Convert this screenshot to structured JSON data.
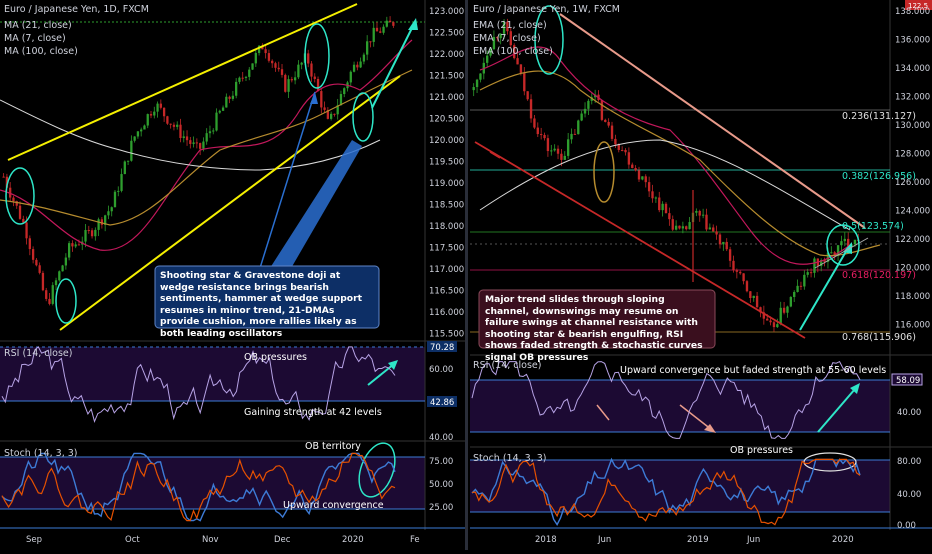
{
  "colors": {
    "background": "#000000",
    "up_candle": "#2e9e2e",
    "down_candle": "#c62828",
    "ma21": "#b58b2e",
    "ma7": "#c2185b",
    "ma100": "#d9d9d9",
    "wedge": "#f5f000",
    "cyan": "#2ee6c8",
    "blue_arrow": "#2a6fd1",
    "channel_upper": "#e89a8a",
    "channel_lower": "#c62828",
    "rsi": "#b7a3e6",
    "stoch_k": "#3d7bd6",
    "stoch_d": "#e65100",
    "osc_band": "#1c0a33",
    "axis_text": "#cfd2dc",
    "annotation_bg": "#0d2f66",
    "annotation_bg2": "#3a0f1e"
  },
  "left": {
    "title": "Euro / Japanese Yen, 1D, FXCM",
    "legend": [
      "MA (21, close)",
      "MA (7, close)",
      "MA (100, close)"
    ],
    "x_ticks": [
      "Sep",
      "Oct",
      "Nov",
      "Dec",
      "2020",
      "Fe"
    ],
    "price_ticks": [
      "123.000",
      "122.500",
      "122.000",
      "121.500",
      "121.000",
      "120.500",
      "120.000",
      "119.500",
      "119.000",
      "118.500",
      "118.000",
      "117.500",
      "117.000",
      "116.500",
      "116.000",
      "115.500"
    ],
    "note": "Shooting star & Gravestone doji at wedge resistance brings bearish sentiments, hammer at wedge support resumes in minor trend, 21-DMAs provide cushion, more rallies likely as both leading oscillators",
    "rsi": {
      "label": "RSI (14, close)",
      "ticks": [
        "60.00",
        "40.00"
      ],
      "level_hi": "70.28",
      "level_lo": "42.86",
      "notes": [
        "OB pressures",
        "Gaining strength at 42 levels"
      ]
    },
    "stoch": {
      "label": "Stoch (14, 3, 3)",
      "ticks": [
        "75.00",
        "50.00",
        "25.00"
      ],
      "notes": [
        "OB territory",
        "Upward convergence"
      ]
    }
  },
  "right": {
    "title": "Euro / Japanese Yen, 1W, FXCM",
    "legend": [
      "EMA (21, close)",
      "EMA (7, close)",
      "EMA (100, close)"
    ],
    "x_ticks": [
      "2018",
      "Jun",
      "2019",
      "Jun",
      "2020"
    ],
    "price_ticks": [
      "138.000",
      "136.000",
      "134.000",
      "132.000",
      "130.000",
      "128.000",
      "126.000",
      "124.000",
      "122.000",
      "120.000",
      "118.000",
      "116.000"
    ],
    "price_badge": "122.5",
    "fib_labels": [
      "0.236(131.127)",
      "0.382(126.956)",
      "0.5(123.574)",
      "0.618(120.197)",
      "0.768(115.906)"
    ],
    "note": "Major trend slides through sloping channel, downswings may resume on failure swings at channel resistance with shooting star & bearish engulfing, RSI shows faded strength & stochastic curves signal OB pressures",
    "rsi": {
      "label": "RSI (14, close)",
      "ticks": [
        "40.00"
      ],
      "level": "58.09",
      "notes": [
        "Upward convergence but faded strength at 55-60 levels"
      ]
    },
    "stoch": {
      "label": "Stoch (14, 3, 3)",
      "ticks": [
        "80.00",
        "40.00",
        "0.00"
      ],
      "notes": [
        "OB pressures"
      ]
    }
  },
  "chart_data": [
    {
      "type": "candlestick",
      "title": "Euro / Japanese Yen, 1D, FXCM",
      "series": [
        {
          "name": "MA (21, close)"
        },
        {
          "name": "MA (7, close)"
        },
        {
          "name": "MA (100, close)"
        }
      ],
      "ylim": [
        115.5,
        123.0
      ],
      "x_categories": [
        "Sep",
        "Oct",
        "Nov",
        "Dec",
        "2020",
        "Fe"
      ],
      "approx_close": [
        119.2,
        118.0,
        116.2,
        117.5,
        117.9,
        118.5,
        120.1,
        120.9,
        120.3,
        119.8,
        120.7,
        121.5,
        122.3,
        121.3,
        122.0,
        120.4,
        121.6,
        122.5,
        122.8
      ]
    },
    {
      "type": "candlestick",
      "title": "Euro / Japanese Yen, 1W, FXCM",
      "series": [
        {
          "name": "EMA (21, close)"
        },
        {
          "name": "EMA (7, close)"
        },
        {
          "name": "EMA (100, close)"
        }
      ],
      "ylim": [
        115.0,
        138.0
      ],
      "x_categories": [
        "2018",
        "Jun",
        "2019",
        "Jun",
        "2020"
      ],
      "approx_close": [
        132.5,
        135.5,
        137.0,
        134.0,
        130.5,
        128.5,
        128.0,
        130.0,
        132.5,
        130.0,
        128.5,
        127.0,
        125.5,
        124.0,
        122.5,
        124.0,
        123.0,
        121.5,
        119.5,
        118.0,
        116.0,
        117.5,
        119.0,
        120.5,
        121.0,
        122.0,
        122.5
      ]
    }
  ]
}
